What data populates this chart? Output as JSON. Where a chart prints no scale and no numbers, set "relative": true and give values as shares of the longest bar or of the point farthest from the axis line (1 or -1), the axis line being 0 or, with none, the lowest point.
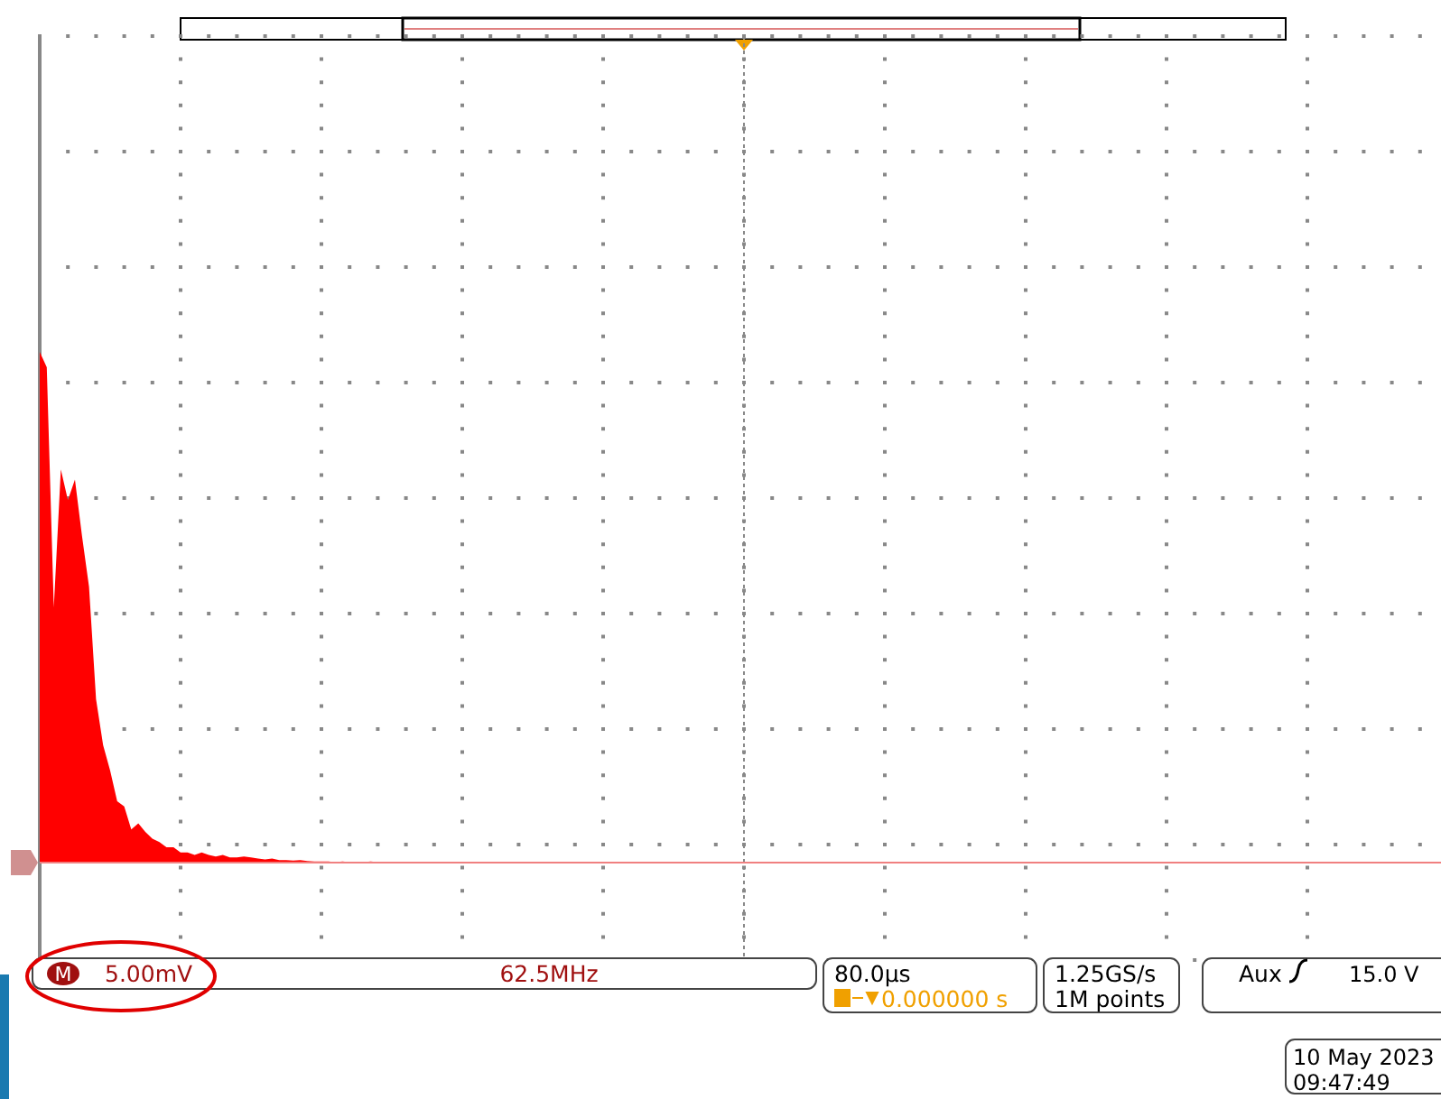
{
  "chart_data": {
    "type": "area",
    "relative": true,
    "grid": true,
    "color": "#ff0000",
    "categories": [
      null,
      null,
      null,
      null,
      null,
      null,
      null,
      null,
      null,
      null,
      null,
      null,
      null,
      null,
      null,
      null,
      null,
      null,
      null,
      null,
      null,
      null,
      null,
      null,
      null,
      null,
      null,
      null,
      null,
      null,
      null,
      null,
      null,
      null,
      null,
      null,
      null,
      null,
      null,
      null,
      null,
      null,
      null,
      null,
      null,
      null,
      null,
      null,
      null,
      null,
      null,
      null,
      null,
      null,
      null,
      null,
      null,
      null,
      null,
      null,
      null,
      null,
      null,
      null,
      null,
      null,
      null,
      null,
      null,
      null,
      null,
      null,
      null,
      null,
      null,
      null,
      null,
      null,
      null,
      null,
      null,
      null,
      null,
      null,
      null,
      null,
      null,
      null,
      null,
      null,
      null,
      null,
      null,
      null,
      null,
      null,
      null,
      null,
      null,
      null,
      null,
      null,
      null,
      null,
      null,
      null,
      null,
      null,
      null,
      null,
      null,
      null,
      null,
      null,
      null,
      null,
      null,
      null,
      null,
      null,
      null,
      null,
      null,
      null,
      null,
      null,
      null,
      null,
      null,
      null,
      null,
      null,
      null,
      null,
      null,
      null,
      null,
      null,
      null,
      null,
      null,
      null,
      null,
      null,
      null,
      null,
      null,
      null,
      null,
      null,
      null,
      null,
      null,
      null,
      null,
      null,
      null,
      null,
      null,
      null,
      null,
      null,
      null,
      null,
      null,
      null,
      null,
      null,
      null,
      null,
      null,
      null,
      null,
      null,
      null,
      null,
      null,
      null,
      null,
      null,
      null,
      null,
      null,
      null,
      null,
      null,
      null,
      null,
      null,
      null,
      null,
      null,
      null,
      null,
      null,
      null,
      null,
      null,
      null,
      null
    ],
    "values": [
      1.0,
      0.97,
      0.5,
      0.77,
      0.71,
      0.75,
      0.64,
      0.54,
      0.32,
      0.23,
      0.18,
      0.12,
      0.11,
      0.065,
      0.077,
      0.06,
      0.047,
      0.04,
      0.03,
      0.03,
      0.02,
      0.02,
      0.015,
      0.02,
      0.015,
      0.012,
      0.015,
      0.01,
      0.01,
      0.012,
      0.01,
      0.008,
      0.006,
      0.008,
      0.005,
      0.005,
      0.004,
      0.005,
      0.003,
      0.002,
      0.002,
      0.002,
      0.001,
      0.002,
      0.001,
      0.001,
      0.001,
      0.002,
      0.001,
      0.001,
      0.001,
      0.001,
      0.001,
      0.001,
      0.001,
      0.001,
      0.001,
      0.001,
      0.001,
      0.001,
      0.001,
      0.001,
      0.001,
      0.001,
      0.001,
      0.001,
      0.001,
      0.001,
      0.001,
      0.001,
      0.001,
      0.001,
      0.001,
      0.001,
      0.001,
      0.001,
      0.001,
      0.001,
      0.001,
      0.001,
      0.001,
      0.001,
      0.001,
      0.001,
      0.001,
      0.001,
      0.001,
      0.001,
      0.001,
      0.001,
      0.001,
      0.001,
      0.001,
      0.001,
      0.001,
      0.001,
      0.001,
      0.001,
      0.001,
      0.001,
      0.001,
      0.001,
      0.001,
      0.001,
      0.001,
      0.001,
      0.001,
      0.001,
      0.001,
      0.001,
      0.001,
      0.001,
      0.001,
      0.001,
      0.001,
      0.001,
      0.001,
      0.001,
      0.001,
      0.001,
      0.001,
      0.001,
      0.001,
      0.001,
      0.001,
      0.001,
      0.001,
      0.001,
      0.001,
      0.001,
      0.001,
      0.001,
      0.001,
      0.001,
      0.001,
      0.001,
      0.001,
      0.001,
      0.001,
      0.001,
      0.001,
      0.001,
      0.001,
      0.001,
      0.001,
      0.001,
      0.001,
      0.001,
      0.001,
      0.001,
      0.001,
      0.001,
      0.001,
      0.001,
      0.001,
      0.001,
      0.001,
      0.001,
      0.001,
      0.001,
      0.001,
      0.001,
      0.001,
      0.001,
      0.001,
      0.001,
      0.001,
      0.001,
      0.001,
      0.001,
      0.001,
      0.001,
      0.001,
      0.001,
      0.001,
      0.001,
      0.001,
      0.001,
      0.001,
      0.001,
      0.001,
      0.001,
      0.001,
      0.001,
      0.001,
      0.001,
      0.001,
      0.001,
      0.001,
      0.001,
      0.001,
      0.001,
      0.001,
      0.001,
      0.001,
      0.001,
      0.001,
      0.001,
      0.001,
      0.001
    ],
    "annotations": [
      "M",
      "5.00mV",
      "62.5MHz",
      "80.0µs",
      "0.000000 s",
      "1.25GS/s",
      "1M points",
      "Aux",
      "15.0 V",
      "10 May 2023",
      "09:47:49"
    ]
  }
}
